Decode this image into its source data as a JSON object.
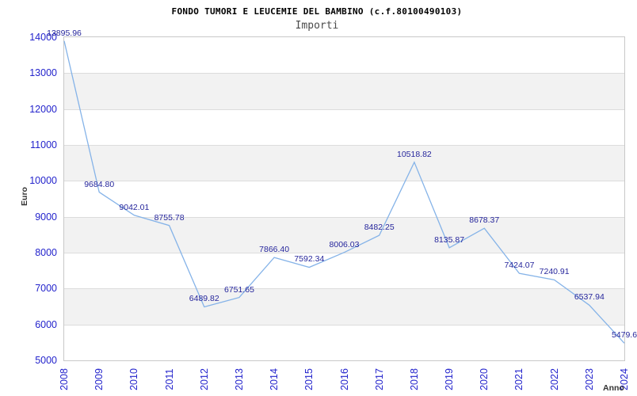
{
  "chart_data": {
    "type": "line",
    "title": "FONDO TUMORI E LEUCEMIE DEL BAMBINO (c.f.80100490103)",
    "subtitle": "Importi",
    "xlabel": "Anno",
    "ylabel": "Euro",
    "categories": [
      2008,
      2009,
      2010,
      2011,
      2012,
      2013,
      2014,
      2015,
      2016,
      2017,
      2018,
      2019,
      2020,
      2021,
      2022,
      2023,
      2024
    ],
    "values": [
      13895.96,
      9684.8,
      9042.01,
      8755.78,
      6489.82,
      6751.65,
      7866.4,
      7592.34,
      8006.03,
      8482.25,
      10518.82,
      8135.87,
      8678.37,
      7424.07,
      7240.91,
      6537.94,
      5479.6
    ],
    "point_labels": [
      "13895.96",
      "9684.80",
      "9042.01",
      "8755.78",
      "6489.82",
      "6751.65",
      "7866.40",
      "7592.34",
      "8006.03",
      "8482.25",
      "10518.82",
      "8135.87",
      "8678.37",
      "7424.07",
      "7240.91",
      "6537.94",
      "5479.6"
    ],
    "ylim": [
      5000,
      14000
    ],
    "ytick_step": 1000,
    "grid": "horizontal",
    "band_fill": "alternating",
    "legend_position": "none",
    "colors": {
      "line": "#85b3e8",
      "data_label": "#26269c",
      "tick_label": "#2323cc",
      "axis_title": "#333333",
      "band": "#f2f2f2",
      "gridline": "#dcdcdc",
      "plot_border": "#c8c8c8",
      "title": "#000000",
      "subtitle": "#4a4a4a",
      "background": "#ffffff"
    }
  }
}
